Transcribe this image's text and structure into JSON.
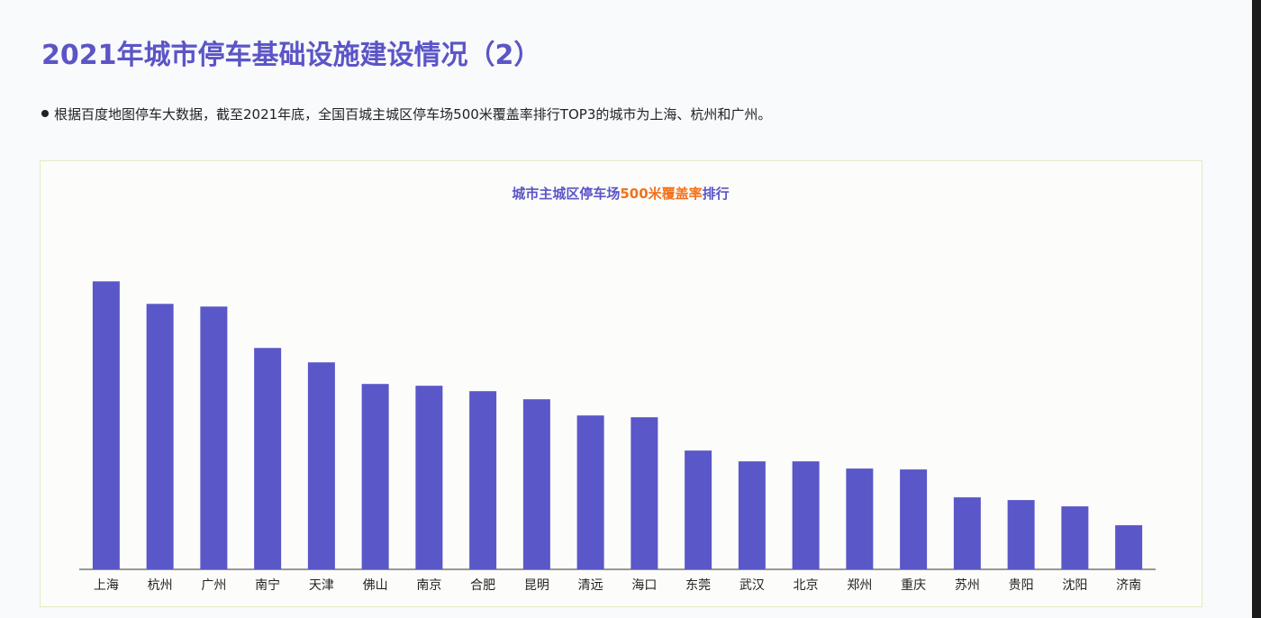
{
  "header": {
    "title": "2021年城市停车基础设施建设情况（2）",
    "bullet": "根据百度地图停车大数据，截至2021年底，全国百城主城区停车场500米覆盖率排行TOP3的城市为上海、杭州和广州。"
  },
  "chart_data": {
    "type": "bar",
    "title_parts": [
      "城市主城区停车场",
      "500米覆盖率",
      "排行"
    ],
    "title_colors": [
      "#5b55c6",
      "#f2711c",
      "#5b55c6"
    ],
    "categories": [
      "上海",
      "杭州",
      "广州",
      "南宁",
      "天津",
      "佛山",
      "南京",
      "合肥",
      "昆明",
      "清远",
      "海口",
      "东莞",
      "武汉",
      "北京",
      "郑州",
      "重庆",
      "苏州",
      "贵阳",
      "沈阳",
      "济南"
    ],
    "values": [
      96,
      88.5,
      87.6,
      73.8,
      69,
      61.8,
      61.2,
      59.4,
      56.7,
      51.3,
      50.7,
      39.6,
      36,
      36,
      33.6,
      33.3,
      24,
      23.1,
      21,
      14.7
    ],
    "color": "#5a57c8",
    "ylim": [
      0,
      100
    ]
  }
}
